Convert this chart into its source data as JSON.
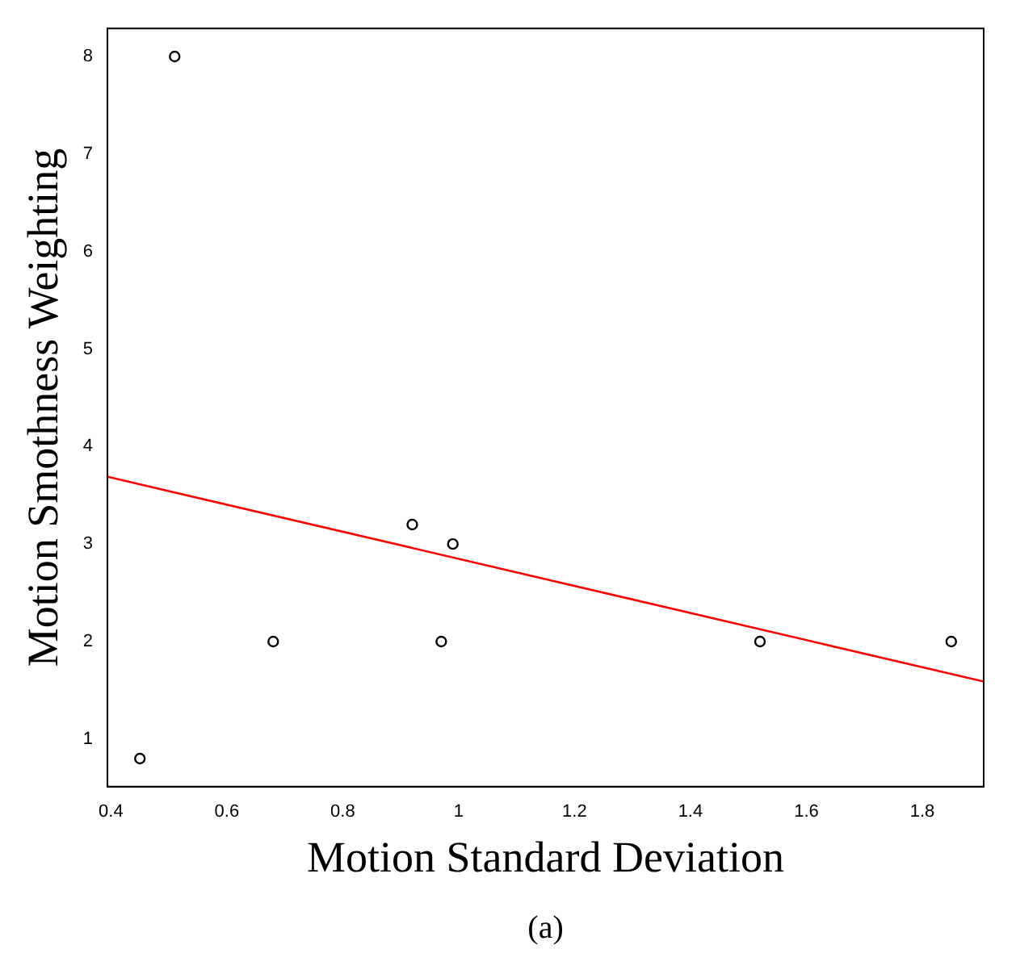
{
  "chart_data": {
    "type": "scatter",
    "xlabel": "Motion Standard Deviation",
    "ylabel": "Motion Smothness Weighting",
    "annotations": [
      "(a)"
    ],
    "xlim": [
      0.394,
      1.906
    ],
    "xticks": [
      0.4,
      0.6,
      0.8,
      1.0,
      1.2,
      1.4,
      1.6,
      1.8
    ],
    "ylim": [
      0.512,
      8.288
    ],
    "yticks": [
      1,
      2,
      3,
      4,
      5,
      6,
      7,
      8
    ],
    "grid": false,
    "legend": false,
    "series": [
      {
        "marker": "circle",
        "color": "#000000",
        "x": [
          0.45,
          0.51,
          0.68,
          0.92,
          0.97,
          0.99,
          1.52,
          1.85
        ],
        "values": [
          0.8,
          8,
          2,
          3.2,
          2,
          3,
          2,
          2
        ]
      },
      {
        "type": "line",
        "color": "#ff0000",
        "x": [
          0.394,
          1.906
        ],
        "values": [
          3.69,
          1.59
        ]
      }
    ]
  }
}
